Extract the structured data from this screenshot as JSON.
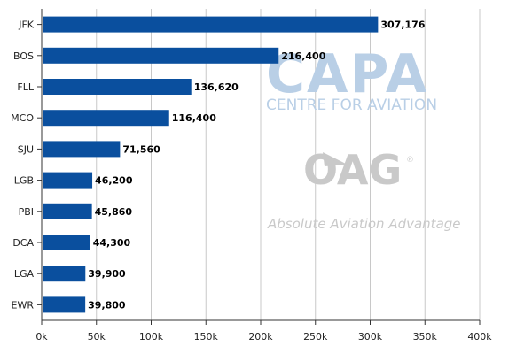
{
  "chart_data": {
    "type": "bar",
    "orientation": "horizontal",
    "title": "",
    "xlabel": "",
    "ylabel": "",
    "categories": [
      "JFK",
      "BOS",
      "FLL",
      "MCO",
      "SJU",
      "LGB",
      "PBI",
      "DCA",
      "LGA",
      "EWR"
    ],
    "values": [
      307176,
      216400,
      136620,
      116400,
      71560,
      46200,
      45860,
      44300,
      39900,
      39800
    ],
    "data_labels": [
      "307,176",
      "216,400",
      "136,620",
      "116,400",
      "71,560",
      "46,200",
      "45,860",
      "44,300",
      "39,900",
      "39,800"
    ],
    "xlim": [
      0,
      400000
    ],
    "x_ticks": [
      0,
      50000,
      100000,
      150000,
      200000,
      250000,
      300000,
      350000,
      400000
    ],
    "x_tick_labels": [
      "0k",
      "50k",
      "100k",
      "150k",
      "200k",
      "250k",
      "300k",
      "350k",
      "400k"
    ],
    "grid": "vertical",
    "bar_color": "#0a4f9e",
    "grid_color": "#c8c8c8",
    "axis_color": "#333333"
  },
  "watermark": {
    "capa_logo": "CAPA",
    "capa_sub": "CENTRE FOR AVIATION",
    "oag_logo": "OAG",
    "oag_reg": "®",
    "oag_tagline": "Absolute Aviation Advantage",
    "capa_color": "#b9cfe6",
    "oag_color": "#c9c9c9"
  }
}
